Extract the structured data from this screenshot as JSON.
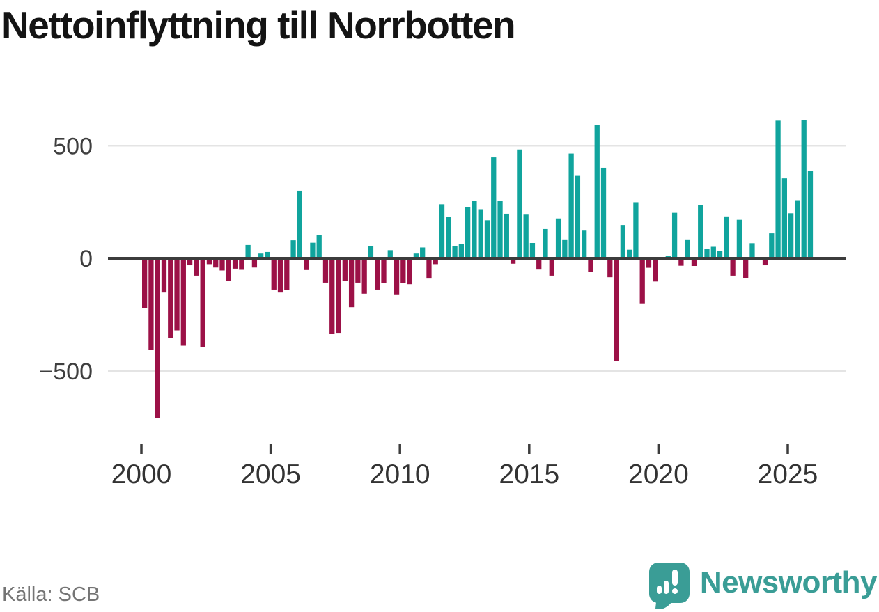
{
  "title": "Nettoinflyttning till Norrbotten",
  "source": {
    "label": "Källa: SCB"
  },
  "branding": {
    "name": "Newsworthy"
  },
  "colors": {
    "positive_bar": "#10a49d",
    "negative_bar": "#9c1147",
    "gridline": "#e4e4e4",
    "zero_line": "#3c3c3c",
    "axis_text": "#3f3f3f",
    "tick_mark": "#3c3c3c",
    "title_text": "#141414",
    "source_text": "#757575",
    "brand_teal": "#3a9d96"
  },
  "chart_data": {
    "type": "bar",
    "title": "Nettoinflyttning till Norrbotten",
    "ylabel": "",
    "xlabel": "",
    "unit": "net migration per quarter (persons)",
    "first_period": "2000-Q1",
    "last_period": "2025-Q4",
    "periods_per_year": 4,
    "grid": "horizontal",
    "legend": "none",
    "ylim": [
      -760,
      650
    ],
    "yticks": [
      500,
      0,
      -500
    ],
    "ytick_labels": [
      "500",
      "0",
      "−500"
    ],
    "xticks": [
      2000,
      2005,
      2010,
      2015,
      2020,
      2025
    ],
    "xtick_labels": [
      "2000",
      "2005",
      "2010",
      "2015",
      "2020",
      "2025"
    ],
    "values": [
      -220,
      -407,
      -708,
      -152,
      -354,
      -320,
      -388,
      -31,
      -77,
      -395,
      -26,
      -41,
      -54,
      -100,
      -46,
      -51,
      59,
      -41,
      21,
      28,
      -139,
      -152,
      -142,
      80,
      300,
      -52,
      69,
      102,
      -108,
      -335,
      -331,
      -101,
      -217,
      -108,
      -157,
      54,
      -139,
      -111,
      36,
      -160,
      -111,
      -115,
      21,
      48,
      -90,
      -26,
      240,
      183,
      53,
      63,
      228,
      256,
      218,
      169,
      448,
      256,
      198,
      -24,
      483,
      194,
      68,
      -50,
      130,
      -77,
      177,
      84,
      465,
      366,
      123,
      -61,
      591,
      402,
      -84,
      -456,
      148,
      38,
      249,
      -200,
      -42,
      -103,
      5,
      10,
      202,
      -33,
      84,
      -34,
      237,
      41,
      51,
      33,
      186,
      -77,
      171,
      -87,
      67,
      4,
      -31,
      111,
      611,
      355,
      200,
      258,
      613,
      389
    ]
  }
}
